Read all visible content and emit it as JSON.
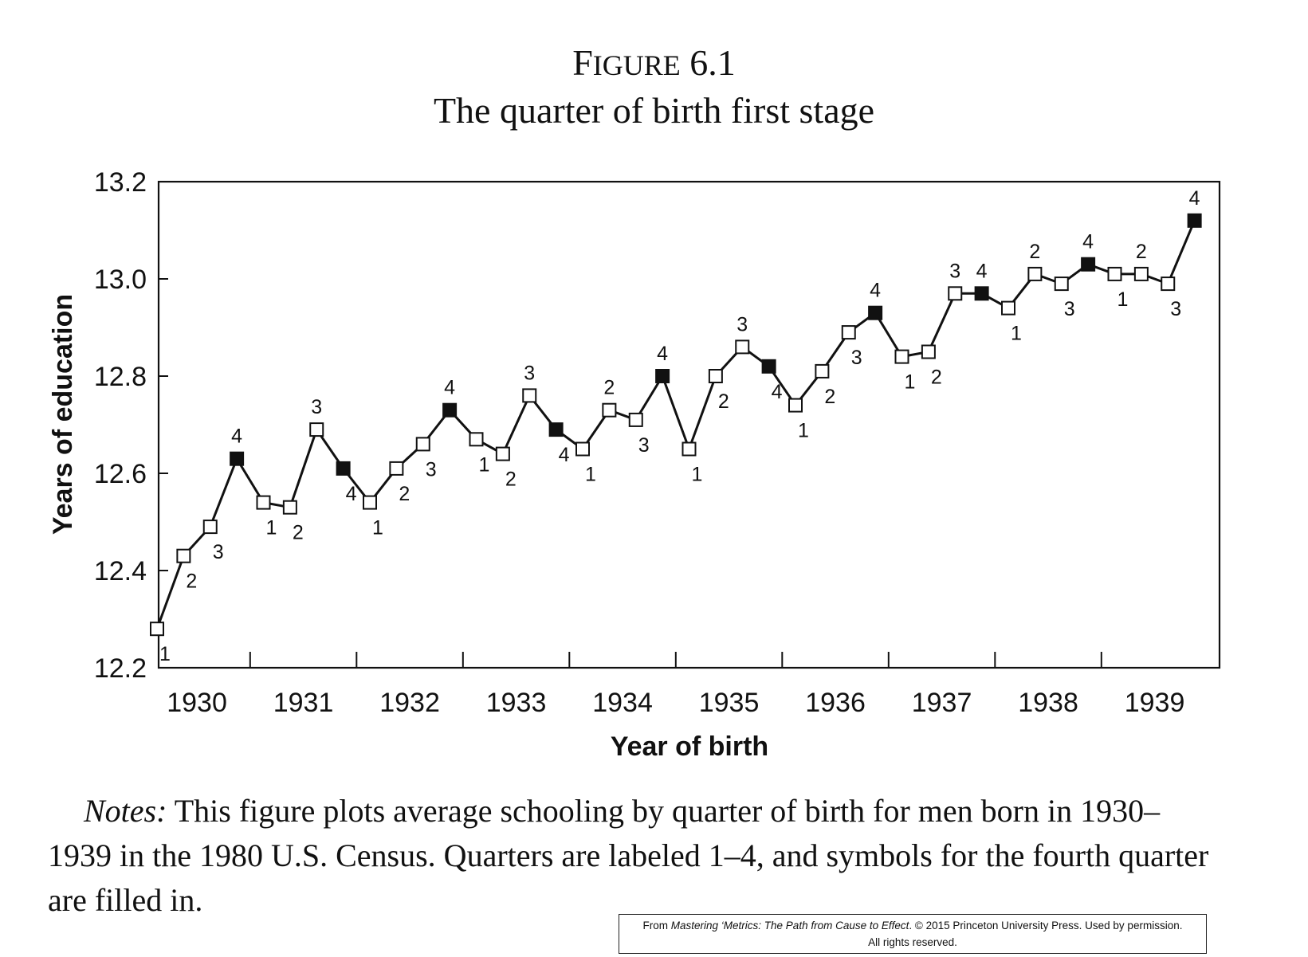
{
  "figure": {
    "label_first": "F",
    "label_sc": "IGURE",
    "label_rest": " 6.1",
    "title": "The quarter of birth first stage"
  },
  "notes": {
    "label": "Notes:",
    "text": "This figure plots average schooling by quarter of birth for men born in 1930–1939 in the 1980 U.S. Census. Quarters are labeled 1–4, and symbols for the fourth quarter are filled in."
  },
  "credit": {
    "prefix": "From ",
    "book": "Mastering ‘Metrics: The Path from Cause to Effect",
    "suffix": ". © 2015 Princeton University Press. Used by permission.",
    "line2": "All rights reserved."
  },
  "chart_data": {
    "type": "line",
    "xlabel": "Year of birth",
    "ylabel": "Years of education",
    "ylim": [
      12.2,
      13.2
    ],
    "xlim": [
      1930,
      1940
    ],
    "yticks": [
      "12.2",
      "12.4",
      "12.6",
      "12.8",
      "13.0",
      "13.2"
    ],
    "xticks": [
      "1930",
      "1931",
      "1932",
      "1933",
      "1934",
      "1935",
      "1936",
      "1937",
      "1938",
      "1939"
    ],
    "grid": false,
    "legend": "none",
    "colors": {
      "line": "#111111",
      "open_marker": "#ffffff",
      "filled_marker": "#111111"
    },
    "series": [
      {
        "points": [
          {
            "year": 1930,
            "quarter": 1,
            "value": 12.28
          },
          {
            "year": 1930,
            "quarter": 2,
            "value": 12.43
          },
          {
            "year": 1930,
            "quarter": 3,
            "value": 12.49
          },
          {
            "year": 1930,
            "quarter": 4,
            "value": 12.63
          },
          {
            "year": 1931,
            "quarter": 1,
            "value": 12.54
          },
          {
            "year": 1931,
            "quarter": 2,
            "value": 12.53
          },
          {
            "year": 1931,
            "quarter": 3,
            "value": 12.69
          },
          {
            "year": 1931,
            "quarter": 4,
            "value": 12.61
          },
          {
            "year": 1932,
            "quarter": 1,
            "value": 12.54
          },
          {
            "year": 1932,
            "quarter": 2,
            "value": 12.61
          },
          {
            "year": 1932,
            "quarter": 3,
            "value": 12.66
          },
          {
            "year": 1932,
            "quarter": 4,
            "value": 12.73
          },
          {
            "year": 1933,
            "quarter": 1,
            "value": 12.67
          },
          {
            "year": 1933,
            "quarter": 2,
            "value": 12.64
          },
          {
            "year": 1933,
            "quarter": 3,
            "value": 12.76
          },
          {
            "year": 1933,
            "quarter": 4,
            "value": 12.69
          },
          {
            "year": 1934,
            "quarter": 1,
            "value": 12.65
          },
          {
            "year": 1934,
            "quarter": 2,
            "value": 12.73
          },
          {
            "year": 1934,
            "quarter": 3,
            "value": 12.71
          },
          {
            "year": 1934,
            "quarter": 4,
            "value": 12.8
          },
          {
            "year": 1935,
            "quarter": 1,
            "value": 12.65
          },
          {
            "year": 1935,
            "quarter": 2,
            "value": 12.8
          },
          {
            "year": 1935,
            "quarter": 3,
            "value": 12.86
          },
          {
            "year": 1935,
            "quarter": 4,
            "value": 12.82
          },
          {
            "year": 1936,
            "quarter": 1,
            "value": 12.74
          },
          {
            "year": 1936,
            "quarter": 2,
            "value": 12.81
          },
          {
            "year": 1936,
            "quarter": 3,
            "value": 12.89
          },
          {
            "year": 1936,
            "quarter": 4,
            "value": 12.93
          },
          {
            "year": 1937,
            "quarter": 1,
            "value": 12.84
          },
          {
            "year": 1937,
            "quarter": 2,
            "value": 12.85
          },
          {
            "year": 1937,
            "quarter": 3,
            "value": 12.97
          },
          {
            "year": 1937,
            "quarter": 4,
            "value": 12.97
          },
          {
            "year": 1938,
            "quarter": 1,
            "value": 12.94
          },
          {
            "year": 1938,
            "quarter": 2,
            "value": 13.01
          },
          {
            "year": 1938,
            "quarter": 3,
            "value": 12.99
          },
          {
            "year": 1938,
            "quarter": 4,
            "value": 13.03
          },
          {
            "year": 1939,
            "quarter": 1,
            "value": 13.01
          },
          {
            "year": 1939,
            "quarter": 2,
            "value": 13.01
          },
          {
            "year": 1939,
            "quarter": 3,
            "value": 12.99
          },
          {
            "year": 1939,
            "quarter": 4,
            "value": 13.12
          }
        ]
      }
    ]
  }
}
